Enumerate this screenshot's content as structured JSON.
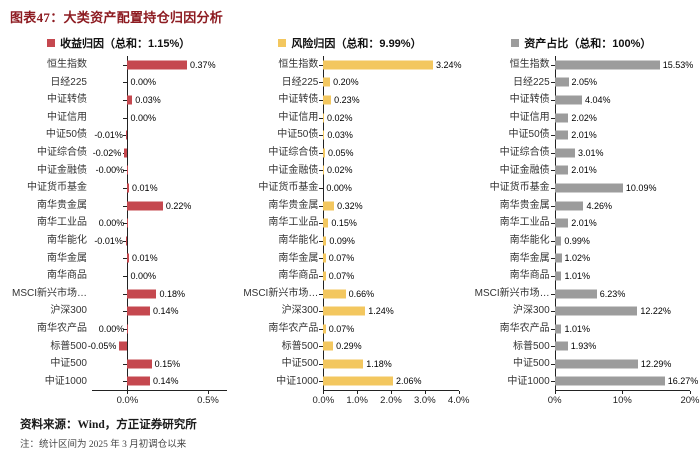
{
  "title": "图表47：大类资产配置持仓归因分析",
  "footer": {
    "source": "资料来源：Wind，方正证券研究所",
    "note": "注：统计区间为 2025 年 3 月初调仓以来"
  },
  "colors": {
    "title_red": "#8D1B21",
    "return_bar": "#C5484F",
    "risk_bar": "#F3C75F",
    "weight_bar": "#9C9C9C",
    "axis": "#222222"
  },
  "chart_data": [
    {
      "type": "bar",
      "orientation": "horizontal",
      "title": "收益归因（总和：1.15%）",
      "total": "1.15%",
      "color": "#C5484F",
      "xlim": [
        -0.22,
        0.62
      ],
      "ticks": [
        {
          "value": 0,
          "label": "0.0%"
        },
        {
          "value": 0.5,
          "label": "0.5%"
        }
      ],
      "categories": [
        "恒生指数",
        "日经225",
        "中证转债",
        "中证信用",
        "中证50债",
        "中证综合债",
        "中证金融债",
        "中证货币基金",
        "南华贵金属",
        "南华工业品",
        "南华能化",
        "南华金属",
        "南华商品",
        "MSCI新兴市场…",
        "沪深300",
        "南华农产品",
        "标普500",
        "中证500",
        "中证1000"
      ],
      "values": [
        0.37,
        0,
        0.03,
        0,
        -0.01,
        -0.02,
        -0.002,
        0.01,
        0.22,
        -0.001,
        -0.01,
        0.01,
        0,
        0.18,
        0.14,
        -0.001,
        -0.05,
        0.15,
        0.14
      ],
      "labels": [
        "0.37%",
        "0.00%",
        "0.03%",
        "0.00%",
        "-0.01%",
        "-0.02%",
        "-0.00%",
        "0.01%",
        "0.22%",
        "0.00%",
        "-0.01%",
        "0.01%",
        "0.00%",
        "0.18%",
        "0.14%",
        "0.00%",
        "-0.05%",
        "0.15%",
        "0.14%"
      ]
    },
    {
      "type": "bar",
      "orientation": "horizontal",
      "title": "风险归因（总和：9.99%）",
      "total": "9.99%",
      "color": "#F3C75F",
      "xlim": [
        0,
        4
      ],
      "ticks": [
        {
          "value": 0,
          "label": "0.0%"
        },
        {
          "value": 1,
          "label": "1.0%"
        },
        {
          "value": 2,
          "label": "2.0%"
        },
        {
          "value": 3,
          "label": "3.0%"
        },
        {
          "value": 4,
          "label": "4.0%"
        }
      ],
      "categories": [
        "恒生指数",
        "日经225",
        "中证转债",
        "中证信用",
        "中证50债",
        "中证综合债",
        "中证金融债",
        "中证货币基金",
        "南华贵金属",
        "南华工业品",
        "南华能化",
        "南华金属",
        "南华商品",
        "MSCI新兴市场…",
        "沪深300",
        "南华农产品",
        "标普500",
        "中证500",
        "中证1000"
      ],
      "values": [
        3.24,
        0.2,
        0.23,
        0.02,
        0.03,
        0.05,
        0.02,
        0,
        0.32,
        0.15,
        0.09,
        0.07,
        0.07,
        0.66,
        1.24,
        0.07,
        0.29,
        1.18,
        2.06
      ],
      "labels": [
        "3.24%",
        "0.20%",
        "0.23%",
        "0.02%",
        "0.03%",
        "0.05%",
        "0.02%",
        "0.00%",
        "0.32%",
        "0.15%",
        "0.09%",
        "0.07%",
        "0.07%",
        "0.66%",
        "1.24%",
        "0.07%",
        "0.29%",
        "1.18%",
        "2.06%"
      ]
    },
    {
      "type": "bar",
      "orientation": "horizontal",
      "title": "资产占比（总和：100%）",
      "total": "100%",
      "color": "#9C9C9C",
      "xlim": [
        0,
        20
      ],
      "ticks": [
        {
          "value": 0,
          "label": "0%"
        },
        {
          "value": 10,
          "label": "10%"
        },
        {
          "value": 20,
          "label": "20%"
        }
      ],
      "categories": [
        "恒生指数",
        "日经225",
        "中证转债",
        "中证信用",
        "中证50债",
        "中证综合债",
        "中证金融债",
        "中证货币基金",
        "南华贵金属",
        "南华工业品",
        "南华能化",
        "南华金属",
        "南华商品",
        "MSCI新兴市场…",
        "沪深300",
        "南华农产品",
        "标普500",
        "中证500",
        "中证1000"
      ],
      "values": [
        15.53,
        2.05,
        4.04,
        2.02,
        2.01,
        3.01,
        2.01,
        10.09,
        4.26,
        2.01,
        0.99,
        1.02,
        1.01,
        6.23,
        12.22,
        1.01,
        1.93,
        12.29,
        16.27
      ],
      "labels": [
        "15.53%",
        "2.05%",
        "4.04%",
        "2.02%",
        "2.01%",
        "3.01%",
        "2.01%",
        "10.09%",
        "4.26%",
        "2.01%",
        "0.99%",
        "1.02%",
        "1.01%",
        "6.23%",
        "12.22%",
        "1.01%",
        "1.93%",
        "12.29%",
        "16.27%"
      ]
    }
  ]
}
